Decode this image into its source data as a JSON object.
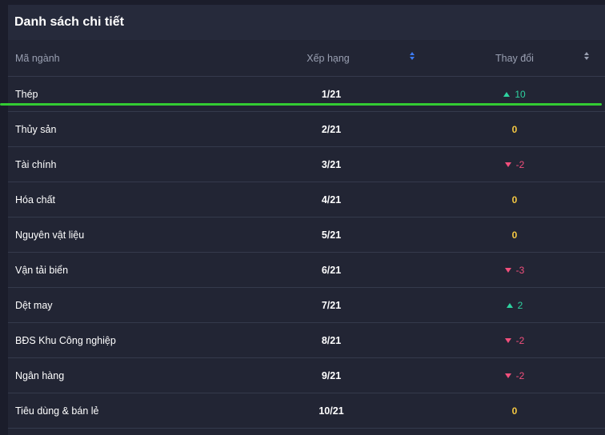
{
  "panel": {
    "title": "Danh sách chi tiết"
  },
  "columns": {
    "code": "Mã ngành",
    "rank": "Xếp hạng",
    "change": "Thay đổi"
  },
  "rows": [
    {
      "name": "Thép",
      "rank": "1/21",
      "change": "10",
      "direction": "up"
    },
    {
      "name": "Thủy sản",
      "rank": "2/21",
      "change": "0",
      "direction": "none"
    },
    {
      "name": "Tài chính",
      "rank": "3/21",
      "change": "-2",
      "direction": "down"
    },
    {
      "name": "Hóa chất",
      "rank": "4/21",
      "change": "0",
      "direction": "none"
    },
    {
      "name": "Nguyên vật liệu",
      "rank": "5/21",
      "change": "0",
      "direction": "none"
    },
    {
      "name": "Vận tải biển",
      "rank": "6/21",
      "change": "-3",
      "direction": "down"
    },
    {
      "name": "Dệt may",
      "rank": "7/21",
      "change": "2",
      "direction": "up"
    },
    {
      "name": "BĐS Khu Công nghiệp",
      "rank": "8/21",
      "change": "-2",
      "direction": "down"
    },
    {
      "name": "Ngân hàng",
      "rank": "9/21",
      "change": "-2",
      "direction": "down"
    },
    {
      "name": "Tiêu dùng & bán lẻ",
      "rank": "10/21",
      "change": "0",
      "direction": "none"
    }
  ],
  "colors": {
    "up": "#2ed3a0",
    "down": "#f24f7c",
    "zero": "#f5c842",
    "highlight": "#33cc33"
  }
}
